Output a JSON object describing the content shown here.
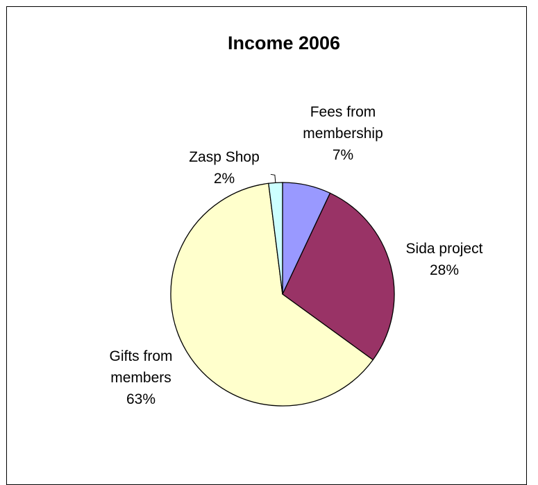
{
  "chart_data": {
    "type": "pie",
    "title": "Income 2006",
    "slices": [
      {
        "label_lines": [
          "Fees from",
          "membership"
        ],
        "percent_label": "7%",
        "value": 7,
        "color": "#9999FF"
      },
      {
        "label_lines": [
          "Sida project"
        ],
        "percent_label": "28%",
        "value": 28,
        "color": "#993366"
      },
      {
        "label_lines": [
          "Gifts from",
          "members"
        ],
        "percent_label": "63%",
        "value": 63,
        "color": "#FFFFCC"
      },
      {
        "label_lines": [
          "Zasp Shop"
        ],
        "percent_label": "2%",
        "value": 2,
        "color": "#CCFFFF"
      }
    ],
    "start_angle": "12 o'clock",
    "direction": "clockwise",
    "legend": "none"
  }
}
